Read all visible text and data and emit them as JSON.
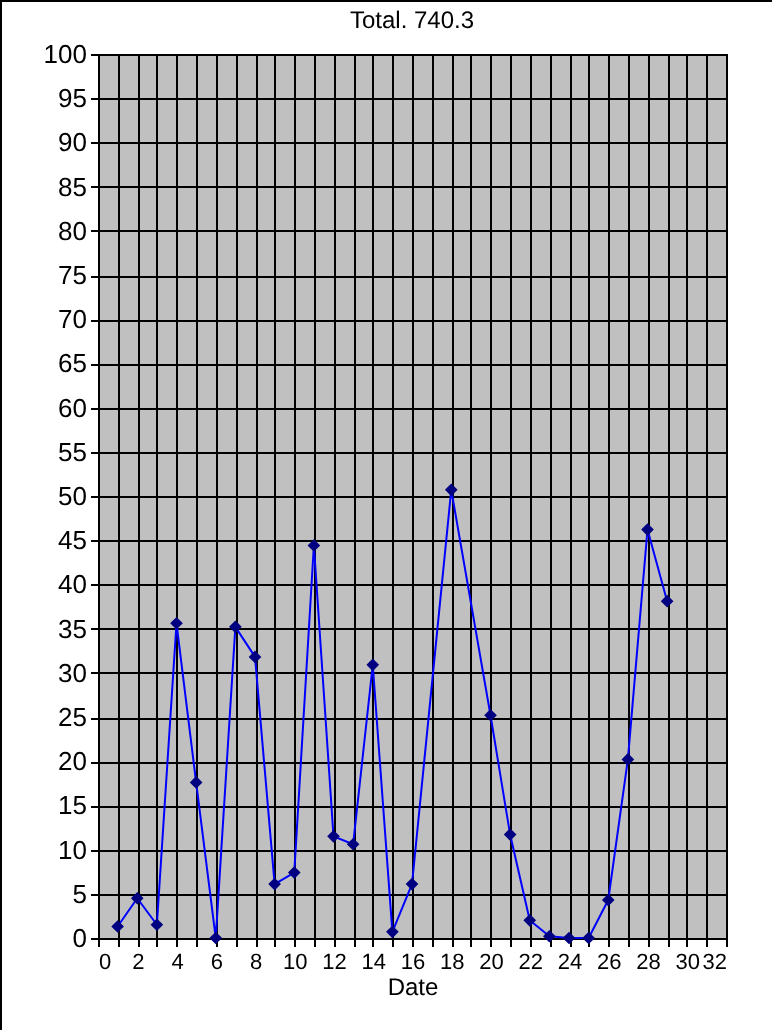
{
  "chart_data": {
    "type": "line",
    "title": "Total. 740.3",
    "xlabel": "Date",
    "x": [
      1,
      2,
      3,
      4,
      5,
      6,
      7,
      8,
      9,
      10,
      11,
      12,
      13,
      14,
      15,
      16,
      17,
      18,
      19,
      20,
      21,
      22,
      23,
      24,
      25,
      26,
      27,
      28,
      29
    ],
    "series": [
      {
        "color": "#0000ff",
        "values": [
          1.3,
          4.5,
          1.5,
          35.6,
          17.6,
          0,
          35.2,
          31.8,
          6.1,
          7.4,
          44.4,
          11.5,
          10.6,
          30.9,
          0.7,
          6.1,
          null,
          50.7,
          null,
          25.2,
          11.7,
          2.0,
          0.2,
          0,
          0,
          4.3,
          20.2,
          46.2,
          38.1
        ]
      }
    ],
    "xlim": [
      0,
      32
    ],
    "xticks": [
      0,
      {
        "value": 1,
        "label": null
      },
      2,
      {
        "value": 3,
        "label": null
      },
      4,
      {
        "value": 5,
        "label": null
      },
      6,
      {
        "value": 7,
        "label": null
      },
      8,
      {
        "value": 9,
        "label": null
      },
      10,
      {
        "value": 11,
        "label": null
      },
      12,
      {
        "value": 13,
        "label": null
      },
      14,
      {
        "value": 15,
        "label": null
      },
      16,
      {
        "value": 17,
        "label": null
      },
      18,
      {
        "value": 19,
        "label": null
      },
      20,
      {
        "value": 21,
        "label": null
      },
      22,
      {
        "value": 23,
        "label": null
      },
      24,
      {
        "value": 25,
        "label": null
      },
      26,
      {
        "value": 27,
        "label": null
      },
      28,
      {
        "value": 29,
        "label": null
      },
      30,
      {
        "value": 31,
        "label": null
      },
      32
    ],
    "ylim": [
      0,
      100
    ],
    "yticks": [
      0,
      5,
      10,
      15,
      20,
      25,
      30,
      35,
      40,
      45,
      50,
      55,
      60,
      65,
      70,
      75,
      80,
      85,
      90,
      95,
      100
    ],
    "grid": true,
    "marker": "diamond",
    "legend": false
  }
}
